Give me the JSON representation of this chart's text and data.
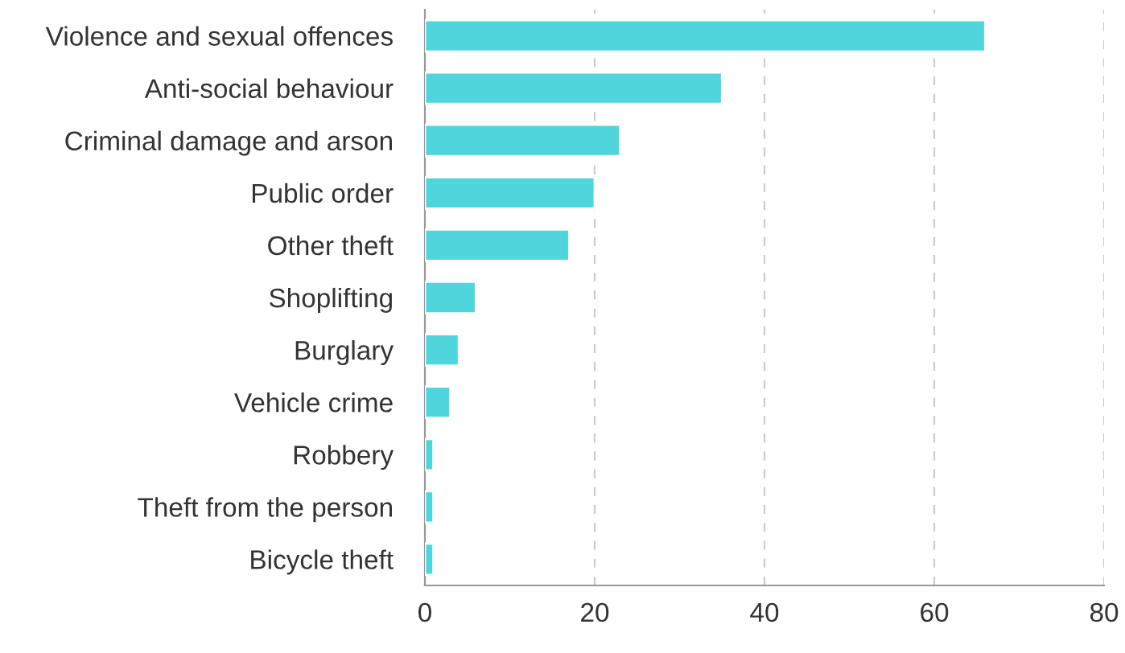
{
  "chart_data": {
    "type": "bar",
    "orientation": "horizontal",
    "categories": [
      "Violence and sexual offences",
      "Anti-social behaviour",
      "Criminal damage and arson",
      "Public order",
      "Other theft",
      "Shoplifting",
      "Burglary",
      "Vehicle crime",
      "Robbery",
      "Theft from the person",
      "Bicycle theft"
    ],
    "values": [
      66,
      35,
      23,
      20,
      17,
      6,
      4,
      3,
      1,
      1,
      1
    ],
    "color": "#4fd6dc",
    "xlim": [
      0,
      80
    ],
    "xticks": [
      0,
      20,
      40,
      60,
      80
    ],
    "grid": "x"
  }
}
